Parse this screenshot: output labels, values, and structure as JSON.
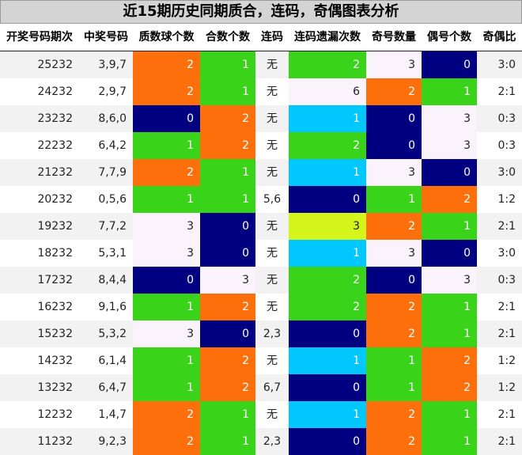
{
  "title": "近15期历史同期质合，连码，奇偶图表分析",
  "headers": [
    "开奖号码期次",
    "中奖号码",
    "质数球个数",
    "合数个数",
    "连码",
    "连码遗漏次数",
    "奇号数量",
    "偶号个数",
    "奇偶比"
  ],
  "colors": {
    "orange": "#fd6f0a",
    "green": "#39d41a",
    "navy": "#000080",
    "lavender": "#fbf3fb",
    "cyan": "#00c8ff",
    "lime": "#d4f51a",
    "row_alt": "#f2f2f2"
  },
  "rows": [
    {
      "period": "25232",
      "numbers": "3,9,7",
      "prime": "2",
      "composite": "1",
      "consecutive": "无",
      "gap": "2",
      "odd": "3",
      "even": "0",
      "ratio": "3:0",
      "prime_color": "orange",
      "composite_color": "green",
      "gap_color": "green",
      "odd_color": "lavender",
      "even_color": "navy"
    },
    {
      "period": "24232",
      "numbers": "2,9,7",
      "prime": "2",
      "composite": "1",
      "consecutive": "无",
      "gap": "6",
      "odd": "2",
      "even": "1",
      "ratio": "2:1",
      "prime_color": "orange",
      "composite_color": "green",
      "gap_color": "lavender",
      "odd_color": "orange",
      "even_color": "green"
    },
    {
      "period": "23232",
      "numbers": "8,6,0",
      "prime": "0",
      "composite": "2",
      "consecutive": "无",
      "gap": "1",
      "odd": "0",
      "even": "3",
      "ratio": "0:3",
      "prime_color": "navy",
      "composite_color": "orange",
      "gap_color": "cyan",
      "odd_color": "navy",
      "even_color": "lavender"
    },
    {
      "period": "22232",
      "numbers": "6,4,2",
      "prime": "1",
      "composite": "2",
      "consecutive": "无",
      "gap": "2",
      "odd": "0",
      "even": "3",
      "ratio": "0:3",
      "prime_color": "green",
      "composite_color": "orange",
      "gap_color": "green",
      "odd_color": "navy",
      "even_color": "lavender"
    },
    {
      "period": "21232",
      "numbers": "7,7,9",
      "prime": "2",
      "composite": "1",
      "consecutive": "无",
      "gap": "1",
      "odd": "3",
      "even": "0",
      "ratio": "3:0",
      "prime_color": "orange",
      "composite_color": "green",
      "gap_color": "cyan",
      "odd_color": "lavender",
      "even_color": "navy"
    },
    {
      "period": "20232",
      "numbers": "0,5,6",
      "prime": "1",
      "composite": "1",
      "consecutive": "5,6",
      "gap": "0",
      "odd": "1",
      "even": "2",
      "ratio": "1:2",
      "prime_color": "green",
      "composite_color": "green",
      "gap_color": "navy",
      "odd_color": "green",
      "even_color": "orange"
    },
    {
      "period": "19232",
      "numbers": "7,7,2",
      "prime": "3",
      "composite": "0",
      "consecutive": "无",
      "gap": "3",
      "odd": "2",
      "even": "1",
      "ratio": "2:1",
      "prime_color": "lavender",
      "composite_color": "navy",
      "gap_color": "lime",
      "odd_color": "orange",
      "even_color": "green"
    },
    {
      "period": "18232",
      "numbers": "5,3,1",
      "prime": "3",
      "composite": "0",
      "consecutive": "无",
      "gap": "1",
      "odd": "3",
      "even": "0",
      "ratio": "3:0",
      "prime_color": "lavender",
      "composite_color": "navy",
      "gap_color": "cyan",
      "odd_color": "lavender",
      "even_color": "navy"
    },
    {
      "period": "17232",
      "numbers": "8,4,4",
      "prime": "0",
      "composite": "3",
      "consecutive": "无",
      "gap": "2",
      "odd": "0",
      "even": "3",
      "ratio": "0:3",
      "prime_color": "navy",
      "composite_color": "lavender",
      "gap_color": "green",
      "odd_color": "navy",
      "even_color": "lavender"
    },
    {
      "period": "16232",
      "numbers": "9,1,6",
      "prime": "1",
      "composite": "2",
      "consecutive": "无",
      "gap": "2",
      "odd": "2",
      "even": "1",
      "ratio": "2:1",
      "prime_color": "green",
      "composite_color": "orange",
      "gap_color": "green",
      "odd_color": "orange",
      "even_color": "green"
    },
    {
      "period": "15232",
      "numbers": "5,3,2",
      "prime": "3",
      "composite": "0",
      "consecutive": "2,3",
      "gap": "0",
      "odd": "2",
      "even": "1",
      "ratio": "2:1",
      "prime_color": "lavender",
      "composite_color": "navy",
      "gap_color": "navy",
      "odd_color": "orange",
      "even_color": "green"
    },
    {
      "period": "14232",
      "numbers": "6,1,4",
      "prime": "1",
      "composite": "2",
      "consecutive": "无",
      "gap": "1",
      "odd": "1",
      "even": "2",
      "ratio": "1:2",
      "prime_color": "green",
      "composite_color": "orange",
      "gap_color": "cyan",
      "odd_color": "green",
      "even_color": "orange"
    },
    {
      "period": "13232",
      "numbers": "6,4,7",
      "prime": "1",
      "composite": "2",
      "consecutive": "6,7",
      "gap": "0",
      "odd": "1",
      "even": "2",
      "ratio": "1:2",
      "prime_color": "green",
      "composite_color": "orange",
      "gap_color": "navy",
      "odd_color": "green",
      "even_color": "orange"
    },
    {
      "period": "12232",
      "numbers": "1,4,7",
      "prime": "2",
      "composite": "1",
      "consecutive": "无",
      "gap": "1",
      "odd": "2",
      "even": "1",
      "ratio": "2:1",
      "prime_color": "orange",
      "composite_color": "green",
      "gap_color": "cyan",
      "odd_color": "orange",
      "even_color": "green"
    },
    {
      "period": "11232",
      "numbers": "9,2,3",
      "prime": "2",
      "composite": "1",
      "consecutive": "2,3",
      "gap": "0",
      "odd": "2",
      "even": "1",
      "ratio": "2:1",
      "prime_color": "orange",
      "composite_color": "green",
      "gap_color": "navy",
      "odd_color": "orange",
      "even_color": "green"
    }
  ]
}
